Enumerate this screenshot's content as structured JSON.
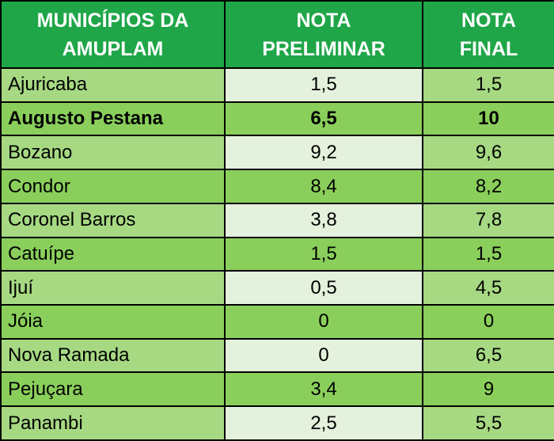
{
  "table": {
    "header": [
      [
        "MUNICÍPIOS DA",
        "AMUPLAM"
      ],
      [
        "NOTA",
        "PRELIMINAR"
      ],
      [
        "NOTA",
        "FINAL"
      ]
    ],
    "rows": [
      [
        "Ajuricaba",
        "1,5",
        "1,5"
      ],
      [
        "Augusto Pestana",
        "6,5",
        "10"
      ],
      [
        "Bozano",
        "9,2",
        "9,6"
      ],
      [
        "Condor",
        "8,4",
        "8,2"
      ],
      [
        "Coronel Barros",
        "3,8",
        "7,8"
      ],
      [
        "Catuípe",
        "1,5",
        "1,5"
      ],
      [
        "Ijuí",
        "0,5",
        "4,5"
      ],
      [
        "Jóia",
        "0",
        "0"
      ],
      [
        "Nova Ramada",
        "0",
        "6,5"
      ],
      [
        "Pejuçara",
        "3,4",
        "9"
      ],
      [
        "Panambi",
        "2,5",
        "5,5"
      ]
    ]
  }
}
